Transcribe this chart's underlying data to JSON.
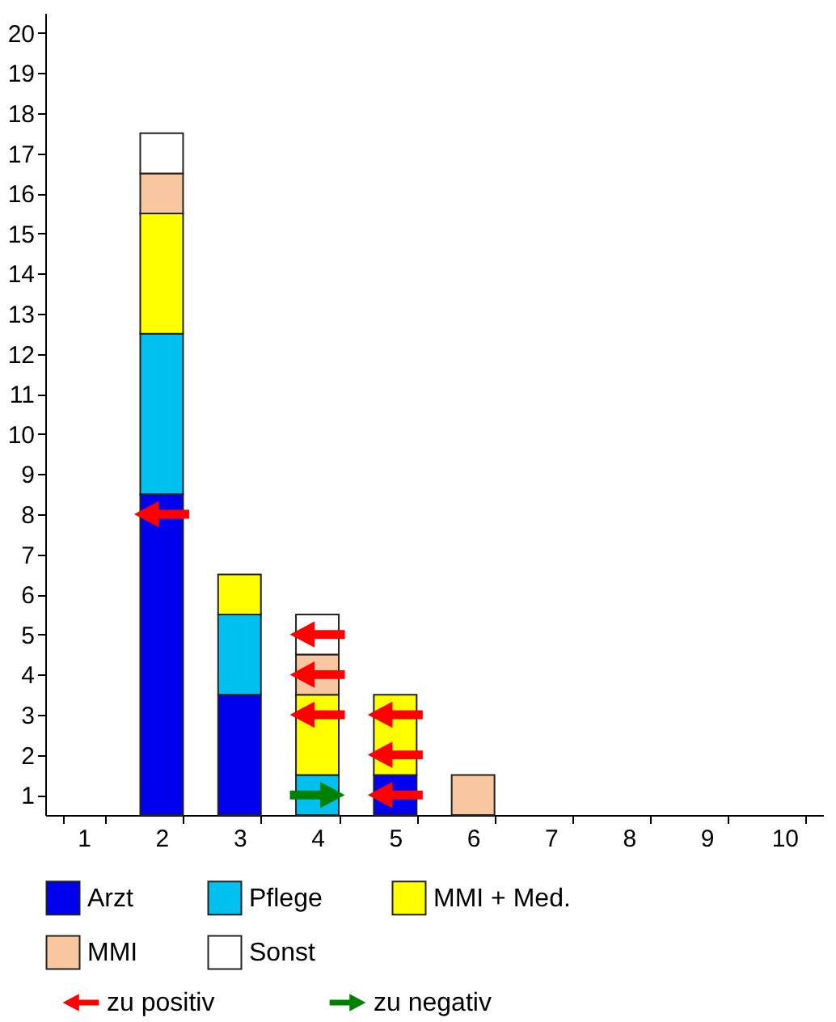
{
  "chart_data": {
    "type": "bar",
    "stacked": true,
    "categories": [
      "1",
      "2",
      "3",
      "4",
      "5",
      "6",
      "7",
      "8",
      "9",
      "10"
    ],
    "ylim": [
      0,
      20
    ],
    "yticks": [
      {
        "value": 0.5,
        "label": "1"
      },
      {
        "value": 1.5,
        "label": "2"
      },
      {
        "value": 2.5,
        "label": "3"
      },
      {
        "value": 3.5,
        "label": "4"
      },
      {
        "value": 4.5,
        "label": "5"
      },
      {
        "value": 5.5,
        "label": "6"
      },
      {
        "value": 6.5,
        "label": "7"
      },
      {
        "value": 7.5,
        "label": "8"
      },
      {
        "value": 8.5,
        "label": "9"
      },
      {
        "value": 9.5,
        "label": "10"
      },
      {
        "value": 10.5,
        "label": "11"
      },
      {
        "value": 11.5,
        "label": "12"
      },
      {
        "value": 12.5,
        "label": "13"
      },
      {
        "value": 13.5,
        "label": "14"
      },
      {
        "value": 14.5,
        "label": "15"
      },
      {
        "value": 15.5,
        "label": "16"
      },
      {
        "value": 16.5,
        "label": "17"
      },
      {
        "value": 17.5,
        "label": "18"
      },
      {
        "value": 18.5,
        "label": "19"
      },
      {
        "value": 19.5,
        "label": "20"
      }
    ],
    "grid": false,
    "legend": "bottom",
    "series": [
      {
        "name": "Arzt",
        "color": "#0000ee",
        "values": [
          null,
          8,
          3,
          null,
          1,
          null,
          null,
          null,
          null,
          null
        ]
      },
      {
        "name": "Pflege",
        "color": "#00c0f0",
        "values": [
          null,
          4,
          2,
          1,
          null,
          null,
          null,
          null,
          null,
          null
        ]
      },
      {
        "name": "MMI + Med.",
        "color": "#ffff00",
        "values": [
          null,
          3,
          1,
          2,
          2,
          null,
          null,
          null,
          null,
          null
        ]
      },
      {
        "name": "MMI",
        "color": "#f9c79f",
        "values": [
          null,
          1,
          null,
          1,
          null,
          1,
          null,
          null,
          null,
          null
        ]
      },
      {
        "name": "Sonst",
        "color": "#ffffff",
        "values": [
          null,
          1,
          null,
          1,
          null,
          null,
          null,
          null,
          null,
          null
        ]
      },
      {
        "name": "zu positiv",
        "type": "scatter",
        "color": "#ff0000",
        "x": [
          "2",
          "4",
          "4",
          "4",
          "5",
          "5",
          "5"
        ],
        "values": [
          7.5,
          4.5,
          3.5,
          2.5,
          2.5,
          1.5,
          0.5
        ]
      },
      {
        "name": "zu negativ",
        "type": "scatter",
        "color": "#008000",
        "x": [
          "4"
        ],
        "values": [
          0.5
        ]
      }
    ]
  }
}
